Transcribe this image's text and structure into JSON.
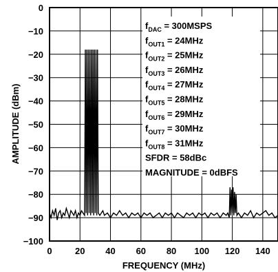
{
  "chart_data": {
    "type": "line",
    "title": "",
    "xlabel": "FREQUENCY (MHz)",
    "ylabel": "AMPLITUDE (dBm)",
    "xlim": [
      0,
      150
    ],
    "ylim": [
      -100,
      0
    ],
    "x_ticks": [
      0,
      20,
      40,
      60,
      80,
      100,
      120,
      140
    ],
    "y_ticks": [
      0,
      -10,
      -20,
      -30,
      -40,
      -50,
      -60,
      -70,
      -80,
      -90,
      -100
    ],
    "grid": true,
    "series": [
      {
        "x": [
          0,
          1,
          2,
          3,
          4,
          5,
          6,
          7,
          8,
          9,
          10,
          11,
          12,
          13,
          14,
          15,
          16,
          17,
          18,
          19,
          20,
          21,
          22,
          23,
          23.5,
          24,
          24.5,
          25,
          25.5,
          26,
          26.5,
          27,
          27.5,
          28,
          28.5,
          29,
          29.5,
          30,
          30.5,
          31,
          31.5,
          32,
          33,
          34,
          35,
          36,
          38,
          40,
          42,
          44,
          46,
          48,
          50,
          52,
          54,
          56,
          58,
          60,
          62,
          64,
          66,
          68,
          70,
          72,
          74,
          76,
          78,
          80,
          82,
          84,
          86,
          88,
          90,
          92,
          94,
          96,
          98,
          100,
          102,
          104,
          106,
          108,
          110,
          112,
          114,
          116,
          117,
          118,
          118.5,
          119,
          119.5,
          120,
          120.5,
          121,
          121.5,
          122,
          122.5,
          123,
          124,
          126,
          128,
          130,
          132,
          134,
          136,
          138,
          140,
          142,
          144,
          146,
          148,
          150
        ],
        "y": [
          -88,
          -90,
          -87,
          -89,
          -86,
          -91,
          -88,
          -87,
          -90,
          -88,
          -89,
          -86,
          -88,
          -90,
          -87,
          -88,
          -89,
          -87,
          -90,
          -88,
          -89,
          -87,
          -88,
          -89,
          -18,
          -88,
          -18,
          -89,
          -18,
          -88,
          -18,
          -89,
          -18,
          -88,
          -18,
          -89,
          -18,
          -88,
          -18,
          -89,
          -18,
          -88,
          -89,
          -88,
          -87,
          -89,
          -88,
          -90,
          -88,
          -89,
          -87,
          -89,
          -88,
          -90,
          -88,
          -89,
          -88,
          -90,
          -88,
          -89,
          -88,
          -90,
          -89,
          -88,
          -90,
          -88,
          -89,
          -88,
          -90,
          -88,
          -89,
          -90,
          -88,
          -89,
          -88,
          -90,
          -88,
          -89,
          -88,
          -90,
          -88,
          -89,
          -88,
          -90,
          -88,
          -89,
          -88,
          -90,
          -77,
          -89,
          -78,
          -88,
          -77,
          -89,
          -79,
          -88,
          -80,
          -89,
          -88,
          -90,
          -88,
          -89,
          -87,
          -90,
          -88,
          -89,
          -88,
          -87,
          -89,
          -88,
          -90,
          -89
        ]
      }
    ],
    "annotations": [
      {
        "main": "f",
        "sub": "DAC",
        "rest": " = 300MSPS"
      },
      {
        "main": "f",
        "sub": "OUT1",
        "rest": " = 24MHz"
      },
      {
        "main": "f",
        "sub": "OUT2",
        "rest": " = 25MHz"
      },
      {
        "main": "f",
        "sub": "OUT3",
        "rest": " = 26MHz"
      },
      {
        "main": "f",
        "sub": "OUT4",
        "rest": " = 27MHz"
      },
      {
        "main": "f",
        "sub": "OUT5",
        "rest": " = 28MHz"
      },
      {
        "main": "f",
        "sub": "OUT6",
        "rest": " = 29MHz"
      },
      {
        "main": "f",
        "sub": "OUT7",
        "rest": " = 30MHz"
      },
      {
        "main": "f",
        "sub": "OUT8",
        "rest": " = 31MHz"
      },
      {
        "main": "SFDR = 58dBc",
        "sub": "",
        "rest": ""
      },
      {
        "main": "MAGNITUDE = 0dBFS",
        "sub": "",
        "rest": ""
      }
    ]
  }
}
